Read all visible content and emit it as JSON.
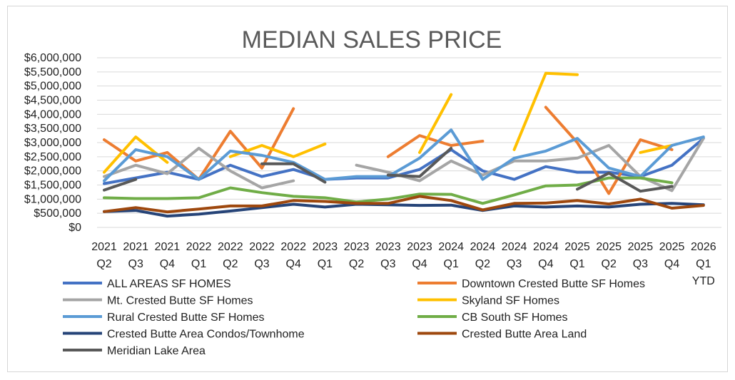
{
  "chart_data": {
    "type": "line",
    "title": "MEDIAN SALES PRICE",
    "xlabel": "",
    "ylabel": "",
    "ylim": [
      0,
      6000000
    ],
    "y_ticks": [
      0,
      500000,
      1000000,
      1500000,
      2000000,
      2500000,
      3000000,
      3500000,
      4000000,
      4500000,
      5000000,
      5500000,
      6000000
    ],
    "y_tick_labels": [
      "$0",
      "$500,000",
      "$1,000,000",
      "$1,500,000",
      "$2,000,000",
      "$2,500,000",
      "$3,000,000",
      "$3,500,000",
      "$4,000,000",
      "$4,500,000",
      "$5,000,000",
      "$5,500,000",
      "$6,000,000"
    ],
    "categories": [
      {
        "year": "2021",
        "q": "Q2"
      },
      {
        "year": "2021",
        "q": "Q3"
      },
      {
        "year": "2021",
        "q": "Q4"
      },
      {
        "year": "2022",
        "q": "Q1"
      },
      {
        "year": "2022",
        "q": "Q2"
      },
      {
        "year": "2022",
        "q": "Q3"
      },
      {
        "year": "2022",
        "q": "Q4"
      },
      {
        "year": "2023",
        "q": "Q1"
      },
      {
        "year": "2023",
        "q": "Q2"
      },
      {
        "year": "2023",
        "q": "Q3"
      },
      {
        "year": "2023",
        "q": "Q4"
      },
      {
        "year": "2024",
        "q": "Q1"
      },
      {
        "year": "2024",
        "q": "Q2"
      },
      {
        "year": "2024",
        "q": "Q3"
      },
      {
        "year": "2024",
        "q": "Q4"
      },
      {
        "year": "2025",
        "q": "Q1"
      },
      {
        "year": "2025",
        "q": "Q2"
      },
      {
        "year": "2025",
        "q": "Q3"
      },
      {
        "year": "2025",
        "q": "Q4"
      },
      {
        "year": "2026",
        "q": "Q1",
        "extra": "YTD"
      }
    ],
    "legend_position": "bottom",
    "grid": true,
    "series": [
      {
        "name": "ALL AREAS SF HOMES",
        "color": "#4472c4",
        "values": [
          1550000,
          1750000,
          1950000,
          1700000,
          2200000,
          1800000,
          2050000,
          1700000,
          1750000,
          1750000,
          2050000,
          2750000,
          2000000,
          1700000,
          2150000,
          1950000,
          1950000,
          1800000,
          2200000,
          3150000
        ]
      },
      {
        "name": "Downtown Crested Butte SF Homes",
        "color": "#ed7d31",
        "values": [
          3100000,
          2350000,
          2650000,
          1700000,
          3400000,
          2100000,
          4200000,
          null,
          null,
          2500000,
          3250000,
          2900000,
          3050000,
          null,
          4250000,
          3000000,
          1200000,
          3100000,
          2750000,
          null
        ]
      },
      {
        "name": "Mt. Crested Butte SF Homes",
        "color": "#a5a5a5",
        "values": [
          1800000,
          2200000,
          1900000,
          2800000,
          2000000,
          1400000,
          1650000,
          null,
          2200000,
          1950000,
          1650000,
          2350000,
          1850000,
          2350000,
          2350000,
          2450000,
          2900000,
          1800000,
          1300000,
          3150000
        ]
      },
      {
        "name": "Skyland SF Homes",
        "color": "#ffc000",
        "values": [
          1950000,
          3200000,
          2300000,
          null,
          2500000,
          2900000,
          2500000,
          2950000,
          null,
          null,
          2650000,
          4700000,
          null,
          2750000,
          5450000,
          5400000,
          null,
          2650000,
          2900000,
          null
        ]
      },
      {
        "name": "Rural Crested Butte SF Homes",
        "color": "#5b9bd5",
        "values": [
          1650000,
          2750000,
          2500000,
          1700000,
          2700000,
          2550000,
          2300000,
          1700000,
          1800000,
          1800000,
          2450000,
          3450000,
          1700000,
          2450000,
          2700000,
          3150000,
          2100000,
          1800000,
          2900000,
          3200000
        ]
      },
      {
        "name": "CB South SF Homes",
        "color": "#70ad47",
        "values": [
          1050000,
          1020000,
          1020000,
          1050000,
          1400000,
          1230000,
          1100000,
          1050000,
          900000,
          1000000,
          1180000,
          1170000,
          850000,
          1150000,
          1470000,
          1500000,
          1750000,
          1750000,
          1580000,
          null
        ]
      },
      {
        "name": "Crested Butte Area Condos/Townhome",
        "color": "#264478",
        "values": [
          560000,
          600000,
          400000,
          470000,
          580000,
          700000,
          820000,
          720000,
          820000,
          800000,
          780000,
          790000,
          600000,
          760000,
          720000,
          760000,
          720000,
          820000,
          850000,
          800000
        ]
      },
      {
        "name": "Crested Butte Area Land",
        "color": "#9e480e",
        "values": [
          560000,
          700000,
          550000,
          650000,
          760000,
          760000,
          950000,
          920000,
          850000,
          850000,
          1100000,
          950000,
          620000,
          850000,
          860000,
          950000,
          830000,
          1000000,
          680000,
          780000
        ]
      },
      {
        "name": "Meridian Lake Area",
        "color": "#595959",
        "values": [
          1320000,
          1700000,
          null,
          null,
          null,
          2250000,
          2250000,
          1600000,
          null,
          1850000,
          1800000,
          2800000,
          null,
          null,
          null,
          1350000,
          1920000,
          1280000,
          1450000,
          null
        ]
      }
    ]
  }
}
